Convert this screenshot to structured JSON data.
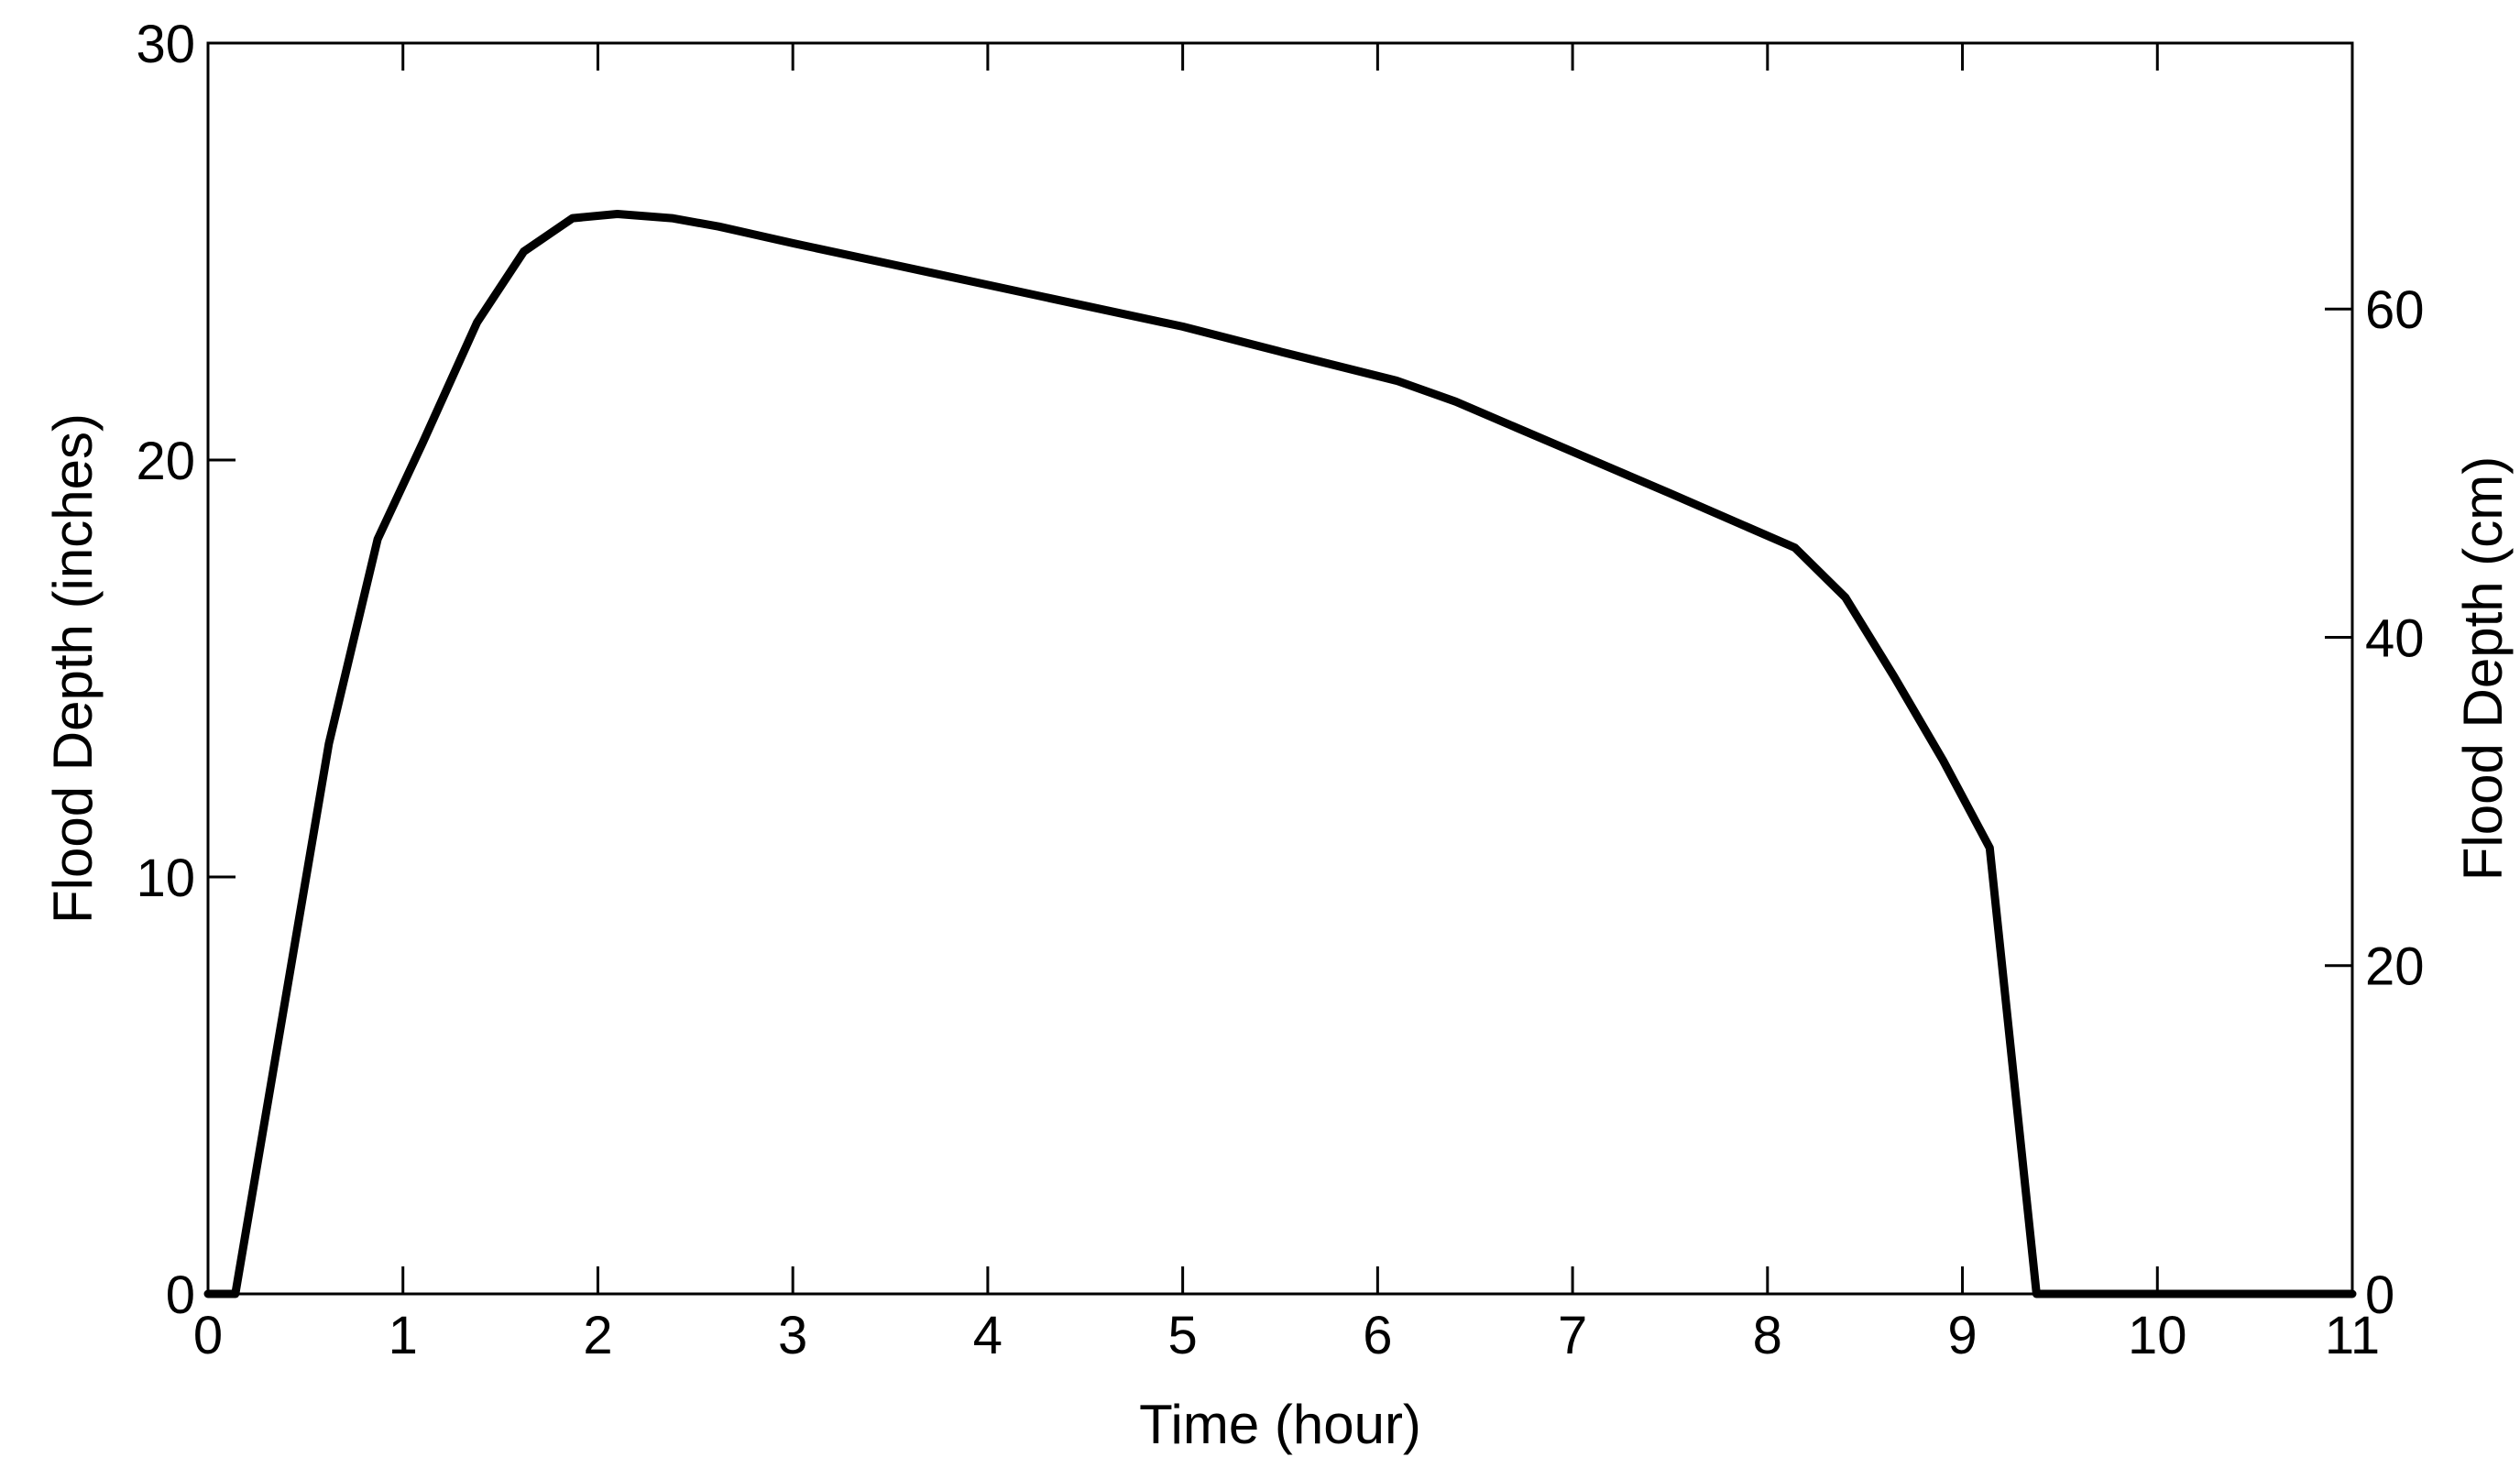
{
  "chart_data": {
    "type": "line",
    "title": "",
    "xlabel": "Time (hour)",
    "ylabel": "Flood Depth (inches)",
    "y2label": "Flood Depth (cm)",
    "xlim": [
      0,
      11
    ],
    "ylim": [
      0,
      30
    ],
    "y2lim": [
      0,
      76.2
    ],
    "x_ticks": [
      "0",
      "1",
      "2",
      "3",
      "4",
      "5",
      "6",
      "7",
      "8",
      "9",
      "10",
      "11"
    ],
    "y_ticks": [
      "0",
      "10",
      "20",
      "30"
    ],
    "y2_ticks": [
      "0",
      "20",
      "40",
      "60"
    ],
    "grid": false,
    "line_color": "#000000",
    "series": [
      {
        "x": [
          0.0,
          0.14,
          0.38,
          0.62,
          0.87,
          1.1,
          1.38,
          1.62,
          1.87,
          2.1,
          2.38,
          2.62,
          3.0,
          3.5,
          4.0,
          4.5,
          5.0,
          5.5,
          6.1,
          6.4,
          7.0,
          7.5,
          8.14,
          8.4,
          8.65,
          8.9,
          9.14,
          9.38,
          9.5,
          10.0,
          11.0
        ],
        "y": [
          0.0,
          0.0,
          6.6,
          13.2,
          18.1,
          20.4,
          23.3,
          25.0,
          25.8,
          25.9,
          25.8,
          25.6,
          25.2,
          24.7,
          24.2,
          23.7,
          23.2,
          22.6,
          21.9,
          21.4,
          20.2,
          19.2,
          17.9,
          16.7,
          14.8,
          12.8,
          10.7,
          0.0,
          0.0,
          0.0,
          0.0
        ]
      }
    ]
  }
}
